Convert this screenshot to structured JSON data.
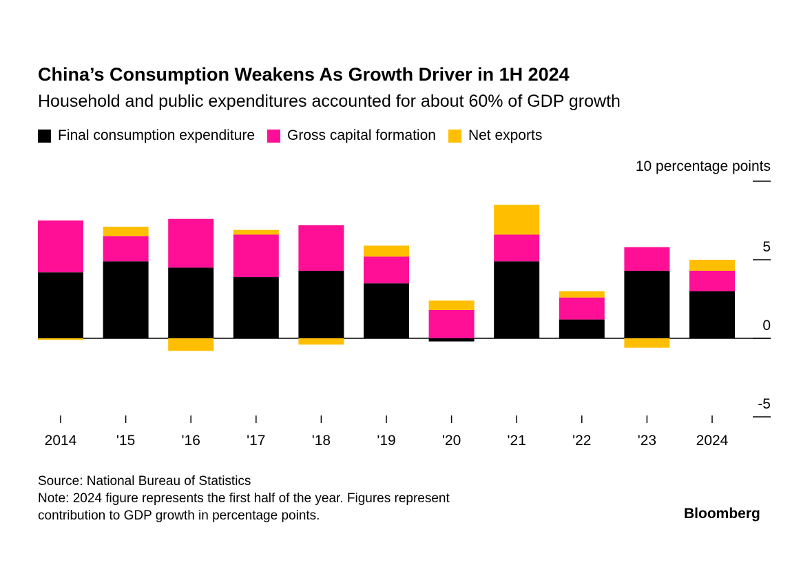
{
  "title": "China’s Consumption Weakens As Growth Driver in 1H 2024",
  "subtitle": "Household and public expenditures accounted for about 60% of GDP growth",
  "source": "Source: National Bureau of Statistics",
  "note_line1": "Note: 2024 figure represents the first half of the year. Figures represent",
  "note_line2": "contribution to GDP growth in percentage points.",
  "brand": "Bloomberg",
  "colors": {
    "consumption": "#000000",
    "capital": "#ff0f96",
    "exports": "#ffbf00"
  },
  "chart_data": {
    "type": "bar",
    "stacked": true,
    "categories": [
      "2014",
      "'15",
      "'16",
      "'17",
      "'18",
      "'19",
      "'20",
      "'21",
      "'22",
      "'23",
      "2024"
    ],
    "series": [
      {
        "name": "Final consumption expenditure",
        "color": "#000000",
        "values": [
          4.2,
          4.9,
          4.5,
          3.9,
          4.3,
          3.5,
          -0.2,
          4.9,
          1.2,
          4.3,
          3.0
        ]
      },
      {
        "name": "Gross capital formation",
        "color": "#ff0f96",
        "values": [
          3.3,
          1.6,
          3.1,
          2.7,
          2.9,
          1.7,
          1.8,
          1.7,
          1.4,
          1.5,
          1.3
        ]
      },
      {
        "name": "Net exports",
        "color": "#ffbf00",
        "values": [
          -0.1,
          0.6,
          -0.8,
          0.3,
          -0.4,
          0.7,
          0.6,
          1.9,
          0.4,
          -0.6,
          0.7
        ]
      }
    ],
    "y_unit_label": "10 percentage points",
    "y_ticks": [
      10,
      5,
      0,
      -5
    ],
    "ylim": [
      -5,
      10
    ],
    "grid": false,
    "legend_position": "top-left"
  }
}
